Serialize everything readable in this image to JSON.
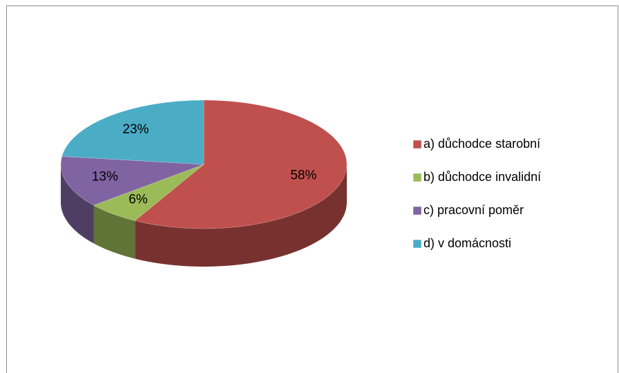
{
  "chart_data": {
    "type": "pie",
    "categories": [
      "a) důchodce starobní",
      "b) důchodce invalidní",
      "c) pracovní poměr",
      "d) v domácnosti"
    ],
    "values": [
      58,
      6,
      13,
      23
    ],
    "value_labels": [
      "58%",
      "6%",
      "13%",
      "23%"
    ],
    "colors": [
      "#c0504d",
      "#9bbb59",
      "#8064a2",
      "#4bacc6"
    ],
    "legend": "right"
  }
}
